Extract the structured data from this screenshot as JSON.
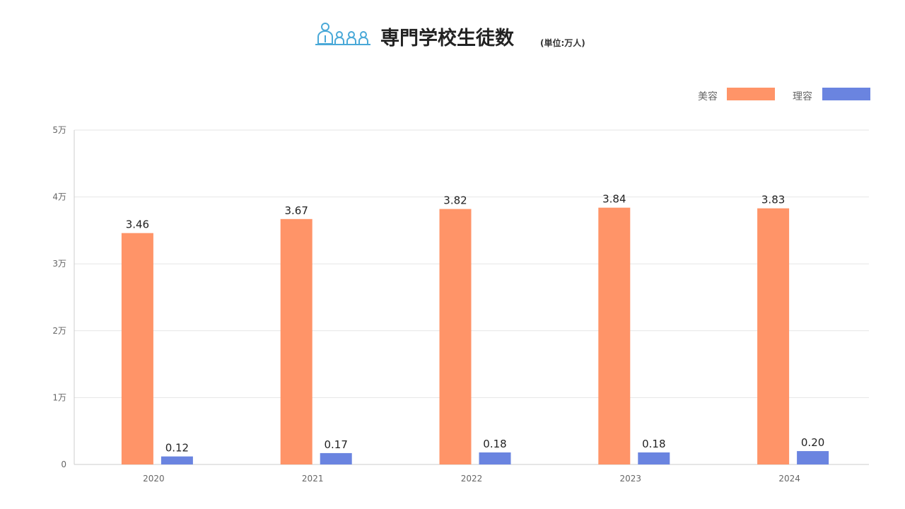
{
  "title": "専門学校生徒数",
  "unit_note": "(単位:万人)",
  "icon": "students-group-icon",
  "colors": {
    "beauty": "#FF9468",
    "barber": "#6A84E0",
    "grid": "#e6e6e6",
    "axis": "#cccccc",
    "icon": "#4aa9d8"
  },
  "chart_data": {
    "type": "bar",
    "title": "専門学校生徒数",
    "categories": [
      "2020",
      "2021",
      "2022",
      "2023",
      "2024"
    ],
    "series": [
      {
        "name": "美容",
        "values": [
          3.46,
          3.67,
          3.82,
          3.84,
          3.83
        ],
        "labels": [
          "3.46",
          "3.67",
          "3.82",
          "3.84",
          "3.83"
        ]
      },
      {
        "name": "理容",
        "values": [
          0.12,
          0.17,
          0.18,
          0.18,
          0.2
        ],
        "labels": [
          "0.12",
          "0.17",
          "0.18",
          "0.18",
          "0.20"
        ]
      }
    ],
    "yticks": [
      "0",
      "1万",
      "2万",
      "3万",
      "4万",
      "5万"
    ],
    "ylim": [
      0,
      5
    ],
    "grid": true,
    "legend": "top-right"
  }
}
